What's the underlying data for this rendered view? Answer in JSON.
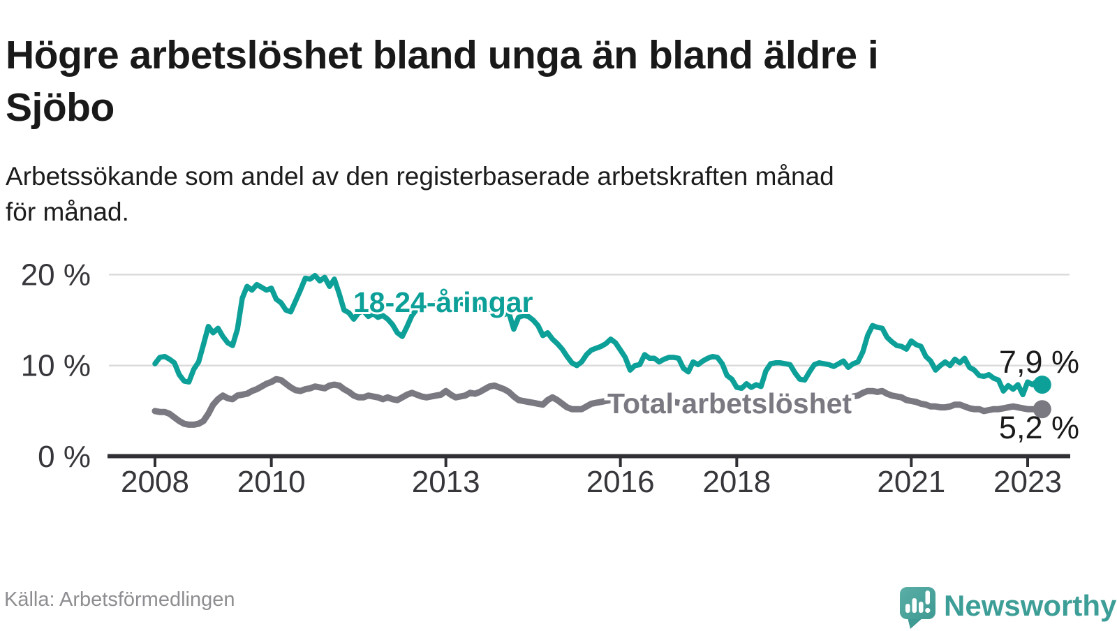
{
  "header": {
    "title_line1": "Högre arbetslöshet bland unga än bland äldre i",
    "title_line2": "Sjöbo",
    "subtitle_line1": "Arbetssökande som andel av den registerbaserade arbetskraften månad",
    "subtitle_line2": "för månad."
  },
  "footer": {
    "source": "Källa: Arbetsförmedlingen",
    "brand_name": "Newsworthy",
    "brand_icon": "newsworthy-speech-bubble-bar-chart-icon"
  },
  "colors": {
    "youth_line": "#0da098",
    "total_line": "#7a7880",
    "grid": "#dbdbdb",
    "axis": "#2f2f34",
    "annotation_text": "#1a1a1a",
    "brand_teal": "#3d9e97"
  },
  "chart_data": {
    "type": "line",
    "unit": "%",
    "frequency": "monthly",
    "x_start": "2008-01",
    "x_end": "2023-04",
    "x_ticks": [
      2008,
      2010,
      2013,
      2016,
      2018,
      2021,
      2023
    ],
    "y_ticks": [
      {
        "value": 0,
        "label": "0 %"
      },
      {
        "value": 10,
        "label": "10 %"
      },
      {
        "value": 20,
        "label": "20 %"
      }
    ],
    "ylim": [
      0,
      21.8
    ],
    "grid": "horizontal",
    "legend_position": "inline-labels",
    "series": [
      {
        "name": "18-24-åringar",
        "color": "#0da098",
        "end_label": "7,9 %",
        "end_value": 7.9,
        "values": [
          10.2,
          10.9,
          11.0,
          10.7,
          10.3,
          9.0,
          8.3,
          8.2,
          9.6,
          10.4,
          12.3,
          14.3,
          13.6,
          14.1,
          13.2,
          12.5,
          12.2,
          14.0,
          17.4,
          18.7,
          18.3,
          18.9,
          18.6,
          18.3,
          18.5,
          17.3,
          16.9,
          16.1,
          15.9,
          17.1,
          18.3,
          19.6,
          19.5,
          19.9,
          19.3,
          19.7,
          18.7,
          19.5,
          17.9,
          16.1,
          15.8,
          15.1,
          15.8,
          16.0,
          15.4,
          15.7,
          15.3,
          15.5,
          15.1,
          14.5,
          13.6,
          13.2,
          14.3,
          15.5,
          16.2,
          16.6,
          16.5,
          16.7,
          16.9,
          17.0,
          17.1,
          17.0,
          16.8,
          16.9,
          16.7,
          16.5,
          16.6,
          16.4,
          16.2,
          16.0,
          15.8,
          15.5,
          15.6,
          15.8,
          14.0,
          15.3,
          15.5,
          15.4,
          15.0,
          14.4,
          13.3,
          13.6,
          12.9,
          12.4,
          11.8,
          11.0,
          10.3,
          10.0,
          10.4,
          11.2,
          11.7,
          11.9,
          12.1,
          12.4,
          12.9,
          12.5,
          11.7,
          10.9,
          9.5,
          10.0,
          10.1,
          11.2,
          10.8,
          10.8,
          10.4,
          10.7,
          10.9,
          10.9,
          10.8,
          9.7,
          9.3,
          10.4,
          10.1,
          10.5,
          10.8,
          11.0,
          10.9,
          10.2,
          8.9,
          8.5,
          7.6,
          7.5,
          8.0,
          7.6,
          7.9,
          7.7,
          9.4,
          10.2,
          10.3,
          10.3,
          10.2,
          10.1,
          9.2,
          8.5,
          8.4,
          9.3,
          10.1,
          10.3,
          10.2,
          10.1,
          9.9,
          10.2,
          10.5,
          9.8,
          10.2,
          10.4,
          11.5,
          13.3,
          14.4,
          14.2,
          14.1,
          13.1,
          12.6,
          12.2,
          12.1,
          11.8,
          12.7,
          12.3,
          12.1,
          11.0,
          10.5,
          9.5,
          10.0,
          10.4,
          10.0,
          10.7,
          10.3,
          10.8,
          9.8,
          9.5,
          8.9,
          8.8,
          9.0,
          8.6,
          8.4,
          7.2,
          7.8,
          7.4,
          7.9,
          6.8,
          8.2,
          7.9,
          8.3,
          7.9
        ]
      },
      {
        "name": "Total arbetslöshet",
        "color": "#7a7880",
        "end_label": "5,2 %",
        "end_value": 5.2,
        "values": [
          5.0,
          4.9,
          4.9,
          4.7,
          4.3,
          3.9,
          3.6,
          3.5,
          3.5,
          3.6,
          3.9,
          4.7,
          5.7,
          6.3,
          6.7,
          6.4,
          6.3,
          6.7,
          6.8,
          6.9,
          7.2,
          7.4,
          7.7,
          8.0,
          8.2,
          8.5,
          8.4,
          8.0,
          7.6,
          7.3,
          7.2,
          7.4,
          7.5,
          7.7,
          7.6,
          7.5,
          7.8,
          7.9,
          7.8,
          7.4,
          7.1,
          6.7,
          6.5,
          6.5,
          6.7,
          6.6,
          6.5,
          6.3,
          6.5,
          6.3,
          6.2,
          6.5,
          6.8,
          7.0,
          6.8,
          6.6,
          6.5,
          6.6,
          6.7,
          6.8,
          7.2,
          6.8,
          6.5,
          6.6,
          6.7,
          7.0,
          6.9,
          7.1,
          7.4,
          7.7,
          7.8,
          7.6,
          7.4,
          7.1,
          6.6,
          6.2,
          6.1,
          6.0,
          5.9,
          5.8,
          5.7,
          6.2,
          6.5,
          6.2,
          5.8,
          5.4,
          5.2,
          5.2,
          5.2,
          5.5,
          5.8,
          5.9,
          6.0,
          6.1,
          6.2,
          6.2,
          6.1,
          6.0,
          5.9,
          5.8,
          5.8,
          6.0,
          6.2,
          6.3,
          6.2,
          6.1,
          6.0,
          6.0,
          5.9,
          5.8,
          5.7,
          5.7,
          5.8,
          6.0,
          6.1,
          6.1,
          6.0,
          5.9,
          5.8,
          5.7,
          5.6,
          5.5,
          5.4,
          5.4,
          5.5,
          5.6,
          5.8,
          5.9,
          5.8,
          5.7,
          5.6,
          5.6,
          5.6,
          5.5,
          5.5,
          5.6,
          5.7,
          5.9,
          6.1,
          6.2,
          6.2,
          6.3,
          6.4,
          6.5,
          6.6,
          6.7,
          7.0,
          7.2,
          7.2,
          7.1,
          7.2,
          6.9,
          6.7,
          6.6,
          6.5,
          6.2,
          6.1,
          6.0,
          5.8,
          5.7,
          5.5,
          5.5,
          5.4,
          5.4,
          5.5,
          5.7,
          5.7,
          5.5,
          5.3,
          5.2,
          5.2,
          5.0,
          5.1,
          5.2,
          5.2,
          5.3,
          5.4,
          5.5,
          5.4,
          5.3,
          5.2,
          5.2,
          5.2,
          5.2
        ]
      }
    ]
  }
}
